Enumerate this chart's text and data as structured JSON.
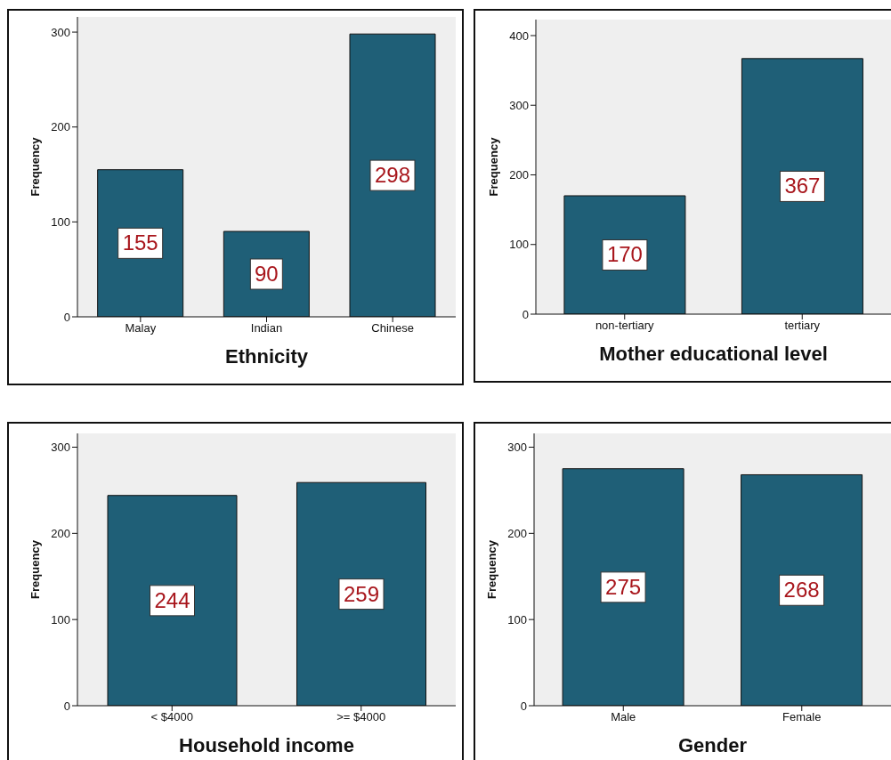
{
  "chart_data": [
    {
      "type": "bar",
      "xlabel": "Ethnicity",
      "ylabel": "Frequency",
      "categories": [
        "Malay",
        "Indian",
        "Chinese"
      ],
      "values": [
        155,
        90,
        298
      ],
      "color": "#1f5f77",
      "ylim": [
        0,
        316
      ],
      "yticks": [
        0,
        100,
        200,
        300
      ],
      "data_labels": true
    },
    {
      "type": "bar",
      "xlabel": "Mother educational level",
      "ylabel": "Frequency",
      "categories": [
        "non-tertiary",
        "tertiary"
      ],
      "values": [
        170,
        367
      ],
      "color": "#1f5f77",
      "ylim": [
        0,
        423
      ],
      "yticks": [
        0,
        100,
        200,
        300,
        400
      ],
      "data_labels": true
    },
    {
      "type": "bar",
      "xlabel": "Household income",
      "ylabel": "Frequency",
      "categories": [
        "< $4000",
        ">= $4000"
      ],
      "values": [
        244,
        259
      ],
      "color": "#1f5f77",
      "ylim": [
        0,
        316
      ],
      "yticks": [
        0,
        100,
        200,
        300
      ],
      "data_labels": true
    },
    {
      "type": "bar",
      "xlabel": "Gender",
      "ylabel": "Frequency",
      "categories": [
        "Male",
        "Female"
      ],
      "values": [
        275,
        268
      ],
      "color": "#1f5f77",
      "ylim": [
        0,
        316
      ],
      "yticks": [
        0,
        100,
        200,
        300
      ],
      "data_labels": true
    }
  ]
}
